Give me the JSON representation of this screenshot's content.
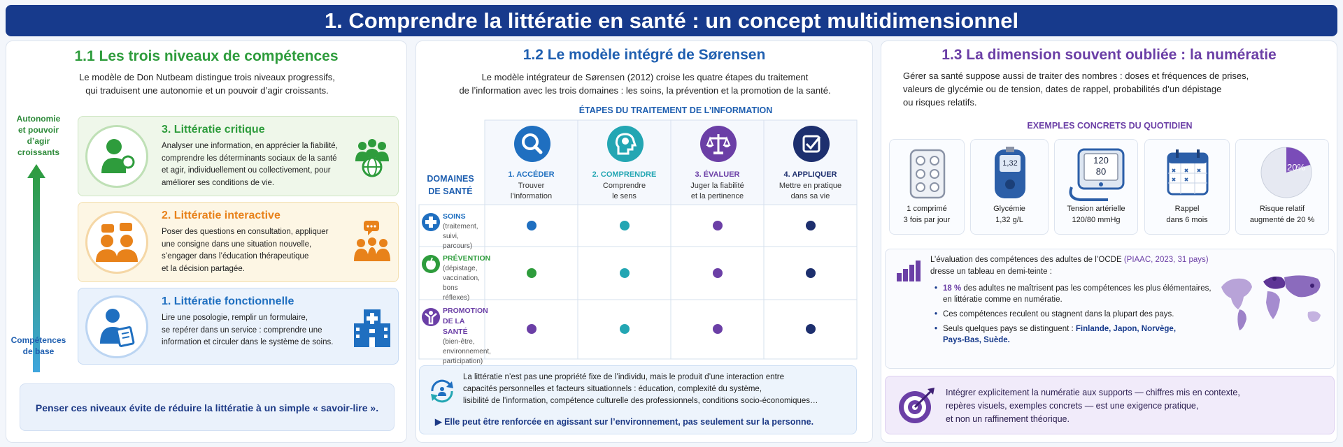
{
  "title": "1. Comprendre la littératie en santé : un concept multidimensionnel",
  "colors": {
    "banner": "#173a8c",
    "green": "#2e9c3c",
    "orange": "#e8821a",
    "blue": "#1f6fc0",
    "navy": "#1a3a8c",
    "teal": "#23a6b3",
    "purple": "#6b3fa6",
    "dark": "#1d2f6e"
  },
  "panel1": {
    "title": "1.1 Les trois niveaux de compétences",
    "intro_1": "Le modèle de Don Nutbeam distingue trois niveaux progressifs,",
    "intro_2": "qui traduisent une autonomie et un pouvoir d’agir croissants.",
    "axis_top_1": "Autonomie",
    "axis_top_2": "et pouvoir",
    "axis_top_3": "d’agir",
    "axis_top_4": "croissants",
    "axis_bottom_1": "Compétences",
    "axis_bottom_2": "de base",
    "levels": [
      {
        "title": "3. Littératie critique",
        "lines": [
          "Analyser une information, en apprécier la fiabilité,",
          "comprendre les déterminants sociaux de la santé",
          "et agir, individuellement ou collectivement, pour",
          "améliorer ses conditions de vie."
        ],
        "icon": "person-magnifier-icon",
        "side_icon": "community-globe-icon"
      },
      {
        "title": "2. Littératie interactive",
        "lines": [
          "Poser des questions en consultation, appliquer",
          "une consigne dans une situation nouvelle,",
          "s’engager dans l’éducation thérapeutique",
          "et la décision partagée."
        ],
        "icon": "people-dialogue-icon",
        "side_icon": "group-chat-icon"
      },
      {
        "title": "1. Littératie fonctionnelle",
        "lines": [
          "Lire une posologie, remplir un formulaire,",
          "se repérer dans un service : comprendre une",
          "information et circuler dans le système de soins."
        ],
        "icon": "person-document-icon",
        "side_icon": "hospital-icon"
      }
    ],
    "footer": "Penser ces niveaux évite de réduire la littératie à un simple « savoir-lire »."
  },
  "panel2": {
    "title": "1.2 Le modèle intégré de Sørensen",
    "intro_1": "Le modèle intégrateur de Sørensen (2012) croise les quatre étapes du traitement",
    "intro_2": "de l’information avec les trois domaines : les soins, la prévention et la promotion de la santé.",
    "steps_header": "ÉTAPES DU TRAITEMENT DE L’INFORMATION",
    "domains_header_1": "DOMAINES",
    "domains_header_2": "DE SANTÉ",
    "steps": [
      {
        "label": "1. ACCÉDER",
        "sub_1": "Trouver",
        "sub_2": "l’information",
        "icon": "search-icon",
        "color": "#1f6fc0"
      },
      {
        "label": "2. COMPRENDRE",
        "sub_1": "Comprendre",
        "sub_2": "le sens",
        "icon": "brain-head-icon",
        "color": "#23a6b3"
      },
      {
        "label": "3. ÉVALUER",
        "sub_1": "Juger la fiabilité",
        "sub_2": "et la pertinence",
        "icon": "balance-scale-icon",
        "color": "#6b3fa6"
      },
      {
        "label": "4. APPLIQUER",
        "sub_1": "Mettre en pratique",
        "sub_2": "dans sa vie",
        "icon": "checkbox-icon",
        "color": "#1d2f6e"
      }
    ],
    "domains": [
      {
        "name": "SOINS",
        "details": [
          "(traitement,",
          "suivi, parcours)"
        ],
        "icon": "medical-cross-icon",
        "color": "#1f6fc0"
      },
      {
        "name": "PRÉVENTION",
        "details": [
          "(dépistage,",
          "vaccination,",
          "bons réflexes)"
        ],
        "icon": "apple-icon",
        "color": "#2e9c3c"
      },
      {
        "name_1": "PROMOTION",
        "name_2": "DE LA SANTÉ",
        "details": [
          "(bien-être,",
          "environnement,",
          "participation)"
        ],
        "icon": "person-raised-arms-icon",
        "color": "#6b3fa6"
      }
    ],
    "note_lines": [
      "La littératie n’est pas une propriété fixe de l’individu, mais le produit d’une interaction entre",
      "capacités personnelles et facteurs situationnels : éducation, complexité du système,",
      "lisibilité de l’information, compétence culturelle des professionnels, conditions socio-économiques…"
    ],
    "note_icon": "cycle-person-icon",
    "note_emphasis": "Elle peut être renforcée en agissant sur l’environnement, pas seulement sur la personne."
  },
  "panel3": {
    "title": "1.3 La dimension souvent oubliée : la numératie",
    "intro_1": "Gérer sa santé suppose aussi de traiter des nombres : doses et fréquences de prises,",
    "intro_2": "valeurs de glycémie ou de tension, dates de rappel, probabilités d’un dépistage",
    "intro_3": "ou risques relatifs.",
    "examples_header": "EXEMPLES CONCRETS DU QUOTIDIEN",
    "examples": [
      {
        "line1": "1 comprimé",
        "line2": "3 fois par jour",
        "icon": "pill-blister-icon"
      },
      {
        "line1": "Glycémie",
        "line2": "1,32 g/L",
        "icon": "glucometer-icon",
        "screen": "1,32"
      },
      {
        "line1": "Tension artérielle",
        "line2": "120/80 mmHg",
        "icon": "blood-pressure-monitor-icon",
        "screen_1": "120",
        "screen_2": "80"
      },
      {
        "line1": "Rappel",
        "line2": "dans 6 mois",
        "icon": "calendar-icon"
      },
      {
        "line1": "Risque relatif",
        "line2": "augmenté de 20 %",
        "icon": "pie-chart-icon",
        "pie_label": "20%",
        "pie_fraction": 0.2
      }
    ],
    "oecd_1": "L’évaluation des compétences des adultes de l’OCDE",
    "oecd_2": "(PIAAC, 2023, 31 pays)",
    "oecd_3": "dresse un tableau en demi-teinte :",
    "bullet1_bold": "18 %",
    "bullet1_rest": " des adultes ne maîtrisent pas les compétences les plus élémentaires,",
    "bullet1_line2": "en littératie comme en numératie.",
    "bullet2": "Ces compétences reculent ou stagnent dans la plupart des pays.",
    "bullet3_pre": "Seuls quelques pays se distinguent : ",
    "bullet3_bold_1": "Finlande, Japon, Norvège,",
    "bullet3_bold_2": "Pays-Bas, Suède.",
    "map_icon": "world-map-icon",
    "bars_icon": "bar-chart-icon",
    "final_lines": [
      "Intégrer explicitement la numératie aux supports — chiffres mis en contexte,",
      "repères visuels, exemples concrets — est une exigence pratique,",
      "et non un raffinement théorique."
    ],
    "final_icon": "target-arrow-icon"
  }
}
